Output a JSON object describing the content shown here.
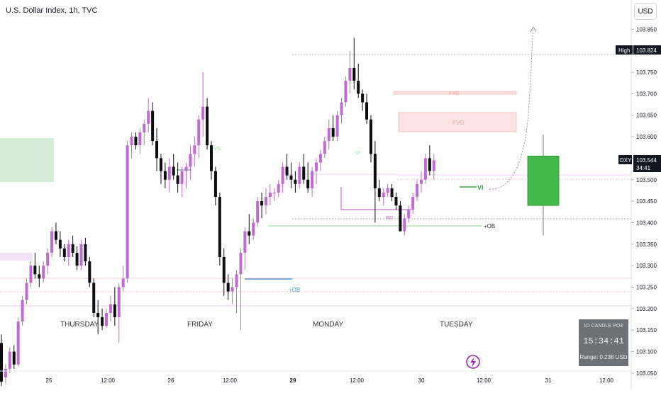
{
  "header": {
    "title": "U.S. Dollar Index, 1h, TVC"
  },
  "currency_button": "USD",
  "colors": {
    "bull": "#c06bd2",
    "bear": "#0d0d12",
    "projection_bull": "#44b84a",
    "fvg": "#f9dada",
    "ob_green": "#cfe8d1",
    "ob_pink": "#f1e2f5"
  },
  "price_scale": {
    "ticks": [
      "103.850",
      "103.800",
      "103.750",
      "103.700",
      "103.650",
      "103.600",
      "103.550",
      "103.500",
      "103.450",
      "103.400",
      "103.350",
      "103.300",
      "103.250",
      "103.200",
      "103.150",
      "103.100",
      "103.050"
    ],
    "high_label": "High",
    "high_value": "103.824",
    "symbol_label": "DXY",
    "last_price": "103.544",
    "countdown": "34:41"
  },
  "time_axis": {
    "labels": [
      "25",
      "12:00",
      "26",
      "12:00",
      "29",
      "12:00",
      "30",
      "12:00",
      "31",
      "12:00"
    ]
  },
  "day_labels": [
    "THURSDAY",
    "FRIDAY",
    "MONDAY",
    "TUESDAY"
  ],
  "annotations": {
    "fvg_upper": "FVG",
    "fvg_lower": "FVG",
    "mss": "MSS",
    "ob_right": "+OB",
    "ob_left": "+OB",
    "vi": "VI",
    "fvg_small_left": "FVG",
    "vi_small": "VI"
  },
  "timer_box": {
    "title": "1D CANDLE PO3'",
    "time": "15:34:41",
    "range": "Range: 0.238 USD"
  },
  "chart_data": {
    "type": "candlestick",
    "title": "U.S. Dollar Index, 1h, TVC",
    "ylim": [
      103.012,
      103.918
    ],
    "candles": [
      [
        103.12,
        103.14,
        103.02,
        103.03
      ],
      [
        103.04,
        103.07,
        103.025,
        103.06
      ],
      [
        103.06,
        103.11,
        103.05,
        103.1
      ],
      [
        103.1,
        103.115,
        103.06,
        103.07
      ],
      [
        103.07,
        103.18,
        103.065,
        103.17
      ],
      [
        103.17,
        103.23,
        103.16,
        103.22
      ],
      [
        103.22,
        103.27,
        103.21,
        103.26
      ],
      [
        103.26,
        103.31,
        103.25,
        103.3
      ],
      [
        103.3,
        103.33,
        103.27,
        103.28
      ],
      [
        103.28,
        103.3,
        103.25,
        103.27
      ],
      [
        103.27,
        103.31,
        103.26,
        103.3
      ],
      [
        103.3,
        103.34,
        103.28,
        103.33
      ],
      [
        103.33,
        103.39,
        103.32,
        103.38
      ],
      [
        103.38,
        103.4,
        103.35,
        103.36
      ],
      [
        103.36,
        103.38,
        103.32,
        103.34
      ],
      [
        103.34,
        103.35,
        103.31,
        103.32
      ],
      [
        103.32,
        103.36,
        103.3,
        103.35
      ],
      [
        103.35,
        103.37,
        103.32,
        103.33
      ],
      [
        103.33,
        103.345,
        103.29,
        103.3
      ],
      [
        103.3,
        103.36,
        103.29,
        103.35
      ],
      [
        103.35,
        103.365,
        103.3,
        103.31
      ],
      [
        103.31,
        103.32,
        103.25,
        103.26
      ],
      [
        103.26,
        103.27,
        103.18,
        103.19
      ],
      [
        103.19,
        103.22,
        103.14,
        103.18
      ],
      [
        103.18,
        103.2,
        103.15,
        103.16
      ],
      [
        103.16,
        103.2,
        103.155,
        103.19
      ],
      [
        103.19,
        103.23,
        103.17,
        103.21
      ],
      [
        103.21,
        103.25,
        103.16,
        103.18
      ],
      [
        103.18,
        103.26,
        103.12,
        103.25
      ],
      [
        103.25,
        103.3,
        103.24,
        103.27
      ],
      [
        103.27,
        103.59,
        103.26,
        103.58
      ],
      [
        103.58,
        103.61,
        103.55,
        103.6
      ],
      [
        103.6,
        103.61,
        103.57,
        103.58
      ],
      [
        103.58,
        103.62,
        103.56,
        103.61
      ],
      [
        103.61,
        103.64,
        103.58,
        103.63
      ],
      [
        103.63,
        103.69,
        103.61,
        103.66
      ],
      [
        103.66,
        103.68,
        103.58,
        103.59
      ],
      [
        103.59,
        103.62,
        103.52,
        103.55
      ],
      [
        103.55,
        103.56,
        103.49,
        103.52
      ],
      [
        103.52,
        103.54,
        103.48,
        103.5
      ],
      [
        103.5,
        103.55,
        103.47,
        103.53
      ],
      [
        103.53,
        103.56,
        103.5,
        103.51
      ],
      [
        103.51,
        103.54,
        103.47,
        103.49
      ],
      [
        103.49,
        103.53,
        103.46,
        103.52
      ],
      [
        103.52,
        103.54,
        103.48,
        103.53
      ],
      [
        103.53,
        103.58,
        103.5,
        103.56
      ],
      [
        103.56,
        103.6,
        103.53,
        103.58
      ],
      [
        103.58,
        103.65,
        103.55,
        103.64
      ],
      [
        103.64,
        103.75,
        103.6,
        103.67
      ],
      [
        103.67,
        103.69,
        103.57,
        103.58
      ],
      [
        103.58,
        103.59,
        103.5,
        103.52
      ],
      [
        103.52,
        103.53,
        103.44,
        103.46
      ],
      [
        103.46,
        103.47,
        103.3,
        103.32
      ],
      [
        103.32,
        103.34,
        103.23,
        103.26
      ],
      [
        103.26,
        103.28,
        103.22,
        103.24
      ],
      [
        103.24,
        103.27,
        103.21,
        103.25
      ],
      [
        103.25,
        103.29,
        103.19,
        103.28
      ],
      [
        103.28,
        103.34,
        103.15,
        103.33
      ],
      [
        103.33,
        103.39,
        103.29,
        103.38
      ],
      [
        103.38,
        103.42,
        103.35,
        103.37
      ],
      [
        103.37,
        103.41,
        103.36,
        103.4
      ],
      [
        103.4,
        103.46,
        103.39,
        103.45
      ],
      [
        103.45,
        103.47,
        103.41,
        103.44
      ],
      [
        103.44,
        103.48,
        103.42,
        103.46
      ],
      [
        103.46,
        103.49,
        103.44,
        103.47
      ],
      [
        103.47,
        103.48,
        103.45,
        103.47
      ],
      [
        103.47,
        103.5,
        103.46,
        103.49
      ],
      [
        103.49,
        103.54,
        103.47,
        103.53
      ],
      [
        103.53,
        103.56,
        103.5,
        103.51
      ],
      [
        103.51,
        103.54,
        103.48,
        103.5
      ],
      [
        103.5,
        103.52,
        103.47,
        103.49
      ],
      [
        103.49,
        103.54,
        103.48,
        103.53
      ],
      [
        103.53,
        103.56,
        103.49,
        103.5
      ],
      [
        103.5,
        103.54,
        103.47,
        103.48
      ],
      [
        103.48,
        103.53,
        103.46,
        103.52
      ],
      [
        103.52,
        103.55,
        103.49,
        103.54
      ],
      [
        103.54,
        103.57,
        103.52,
        103.56
      ],
      [
        103.56,
        103.6,
        103.55,
        103.59
      ],
      [
        103.59,
        103.64,
        103.57,
        103.62
      ],
      [
        103.62,
        103.65,
        103.59,
        103.6
      ],
      [
        103.6,
        103.66,
        103.59,
        103.65
      ],
      [
        103.65,
        103.69,
        103.63,
        103.68
      ],
      [
        103.68,
        103.74,
        103.67,
        103.73
      ],
      [
        103.73,
        103.8,
        103.7,
        103.76
      ],
      [
        103.76,
        103.83,
        103.71,
        103.73
      ],
      [
        103.73,
        103.77,
        103.69,
        103.7
      ],
      [
        103.7,
        103.71,
        103.66,
        103.68
      ],
      [
        103.68,
        103.7,
        103.63,
        103.64
      ],
      [
        103.64,
        103.65,
        103.54,
        103.56
      ],
      [
        103.56,
        103.59,
        103.4,
        103.48
      ],
      [
        103.48,
        103.5,
        103.45,
        103.46
      ],
      [
        103.46,
        103.48,
        103.44,
        103.47
      ],
      [
        103.47,
        103.49,
        103.46,
        103.48
      ],
      [
        103.48,
        103.49,
        103.45,
        103.46
      ],
      [
        103.46,
        103.47,
        103.43,
        103.44
      ],
      [
        103.44,
        103.45,
        103.38,
        103.38
      ],
      [
        103.38,
        103.42,
        103.37,
        103.41
      ],
      [
        103.41,
        103.44,
        103.4,
        103.43
      ],
      [
        103.43,
        103.47,
        103.42,
        103.46
      ],
      [
        103.46,
        103.5,
        103.45,
        103.49
      ],
      [
        103.49,
        103.52,
        103.47,
        103.5
      ],
      [
        103.5,
        103.56,
        103.49,
        103.55
      ],
      [
        103.55,
        103.58,
        103.51,
        103.52
      ],
      [
        103.52,
        103.56,
        103.5,
        103.545
      ]
    ],
    "projection": {
      "open": 103.44,
      "high": 103.605,
      "low": 103.37,
      "close": 103.555
    },
    "levels": [
      103.824,
      103.544
    ]
  }
}
